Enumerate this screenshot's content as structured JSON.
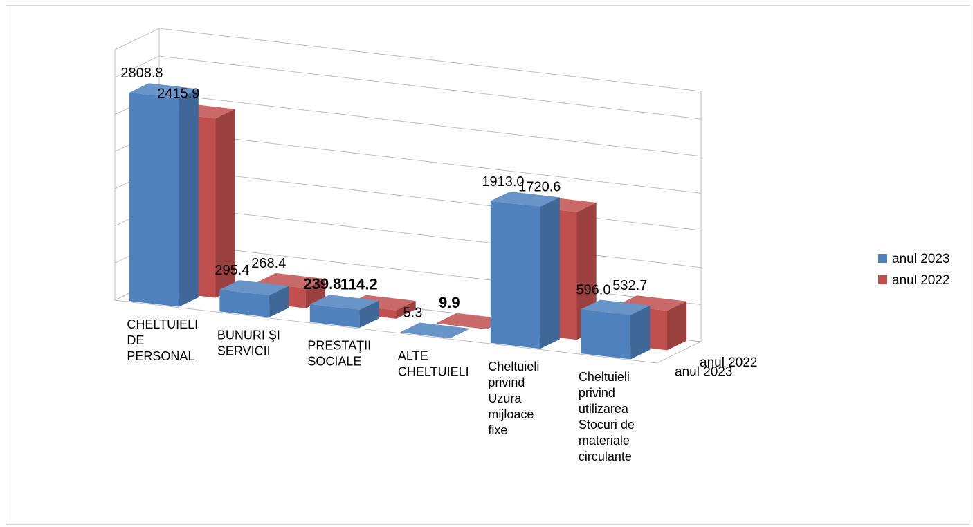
{
  "chart_data": {
    "type": "bar",
    "subtype": "3d-clustered-column",
    "title": "",
    "xlabel": "",
    "ylabel": "",
    "gridlines": true,
    "legend_position": "right",
    "categories": [
      [
        "CHELTUIELI",
        "DE",
        "PERSONAL"
      ],
      [
        "BUNURI ŞI",
        "SERVICII"
      ],
      [
        "PRESTAŢII",
        "SOCIALE"
      ],
      [
        "ALTE",
        "CHELTUIELI"
      ],
      [
        "Cheltuieli",
        "privind",
        "Uzura",
        "mijloace",
        "fixe"
      ],
      [
        "Cheltuieli",
        "privind",
        "utilizarea",
        "Stocuri de",
        "materiale",
        "circulante"
      ]
    ],
    "series": [
      {
        "name": "anul  2023",
        "color": "#4f81bd",
        "values": [
          2808.8,
          295.4,
          239.8,
          5.3,
          1913.0,
          596.0
        ],
        "labels": [
          "2808.8",
          "295.4",
          "239.8",
          "5.3",
          "1913.0",
          "596.0"
        ],
        "bold_labels": [
          false,
          false,
          true,
          false,
          false,
          false
        ]
      },
      {
        "name": "anul  2022",
        "color": "#c0504d",
        "values": [
          2415.9,
          268.4,
          114.2,
          9.9,
          1720.6,
          532.7
        ],
        "labels": [
          "2415.9",
          "268.4",
          "114.2",
          "9.9",
          "1720.6",
          "532.7"
        ],
        "bold_labels": [
          false,
          false,
          true,
          true,
          false,
          false
        ]
      }
    ],
    "depth_axis_labels": [
      "anul  2022",
      "anul  2023"
    ],
    "ylim": [
      0,
      3000
    ]
  }
}
